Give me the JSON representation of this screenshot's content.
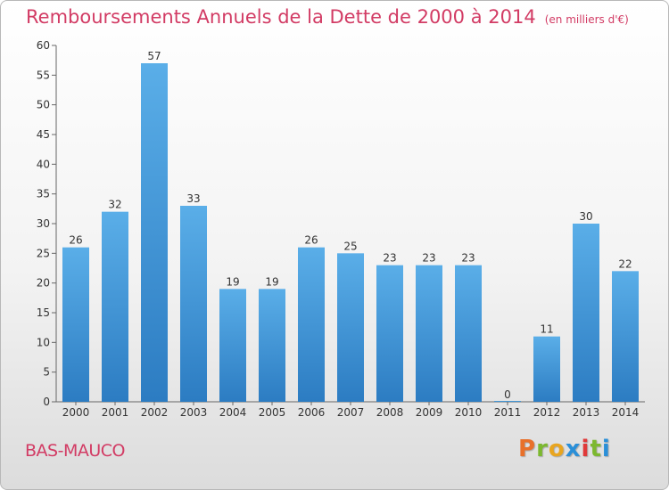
{
  "chart_data": {
    "type": "bar",
    "title": "Remboursements Annuels de la Dette de 2000 à 2014",
    "unit_label": "(en milliers d'€)",
    "categories": [
      "2000",
      "2001",
      "2002",
      "2003",
      "2004",
      "2005",
      "2006",
      "2007",
      "2008",
      "2009",
      "2010",
      "2011",
      "2012",
      "2013",
      "2014"
    ],
    "values": [
      26,
      32,
      57,
      33,
      19,
      19,
      26,
      25,
      23,
      23,
      23,
      0,
      11,
      30,
      22
    ],
    "ylim": [
      0,
      60
    ],
    "yticks": [
      0,
      5,
      10,
      15,
      20,
      25,
      30,
      35,
      40,
      45,
      50,
      55,
      60
    ],
    "grid": false,
    "bar_color": "#3a8fd4"
  },
  "footer": {
    "commune": "BAS-MAUCO",
    "logo_text": "Proxiti"
  },
  "colors": {
    "title": "#d23b64",
    "bar_top": "#5aaee8",
    "bar_bottom": "#2c7cc2"
  }
}
